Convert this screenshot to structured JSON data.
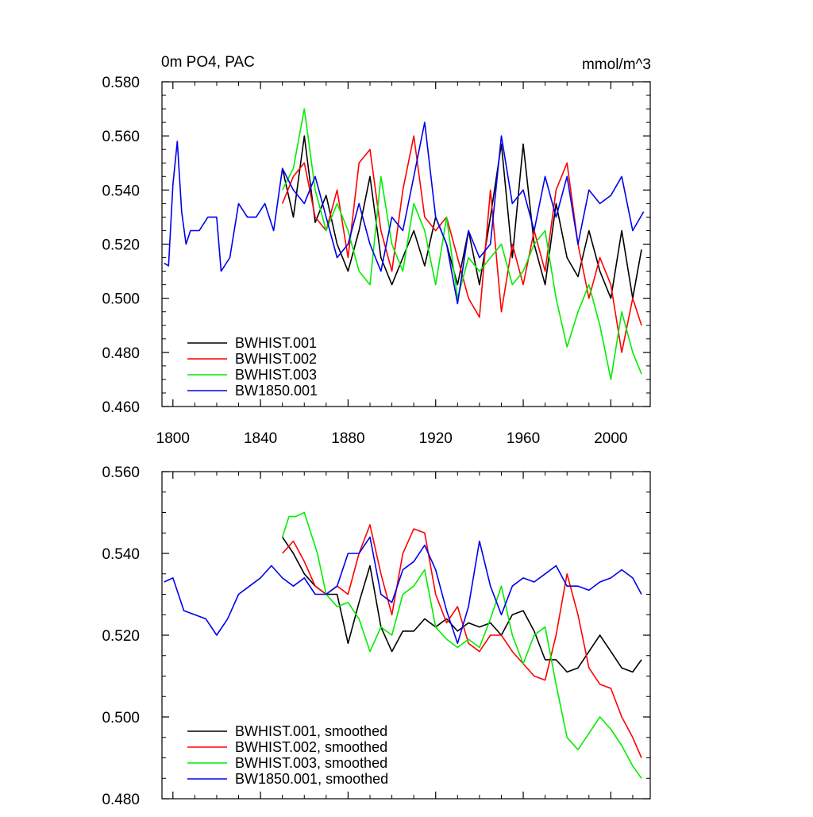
{
  "chart_data": [
    {
      "type": "line",
      "title_left": "0m PO4, PAC",
      "title_right": "mmol/m^3",
      "xlim": [
        1795,
        2018
      ],
      "ylim": [
        0.46,
        0.58
      ],
      "x_ticks": [
        1800,
        1840,
        1880,
        1920,
        1960,
        2000
      ],
      "x_tick_labels": [
        "1800",
        "1840",
        "1880",
        "1920",
        "1960",
        "2000"
      ],
      "y_ticks": [
        0.46,
        0.48,
        0.5,
        0.52,
        0.54,
        0.56,
        0.58
      ],
      "y_tick_labels": [
        "0.460",
        "0.480",
        "0.500",
        "0.520",
        "0.540",
        "0.560",
        "0.580"
      ],
      "legend_position": "bottom-left",
      "series": [
        {
          "name": "BWHIST.001",
          "color": "#000000",
          "x": [
            1850,
            1855,
            1860,
            1865,
            1870,
            1875,
            1880,
            1885,
            1890,
            1895,
            1900,
            1905,
            1910,
            1915,
            1920,
            1925,
            1930,
            1935,
            1940,
            1945,
            1950,
            1955,
            1960,
            1965,
            1970,
            1975,
            1980,
            1985,
            1990,
            1995,
            2000,
            2005,
            2010,
            2014
          ],
          "y": [
            0.548,
            0.53,
            0.56,
            0.528,
            0.538,
            0.52,
            0.51,
            0.525,
            0.545,
            0.515,
            0.505,
            0.515,
            0.525,
            0.512,
            0.53,
            0.52,
            0.505,
            0.525,
            0.505,
            0.53,
            0.557,
            0.515,
            0.557,
            0.52,
            0.505,
            0.535,
            0.515,
            0.508,
            0.525,
            0.51,
            0.5,
            0.525,
            0.5,
            0.518
          ]
        },
        {
          "name": "BWHIST.002",
          "color": "#ff0000",
          "x": [
            1850,
            1855,
            1860,
            1865,
            1870,
            1875,
            1880,
            1885,
            1890,
            1895,
            1900,
            1905,
            1910,
            1915,
            1920,
            1925,
            1930,
            1935,
            1940,
            1945,
            1950,
            1955,
            1960,
            1965,
            1970,
            1975,
            1980,
            1985,
            1990,
            1995,
            2000,
            2005,
            2010,
            2014
          ],
          "y": [
            0.535,
            0.545,
            0.55,
            0.53,
            0.525,
            0.54,
            0.515,
            0.55,
            0.555,
            0.525,
            0.51,
            0.54,
            0.56,
            0.53,
            0.525,
            0.53,
            0.515,
            0.5,
            0.493,
            0.54,
            0.495,
            0.52,
            0.505,
            0.525,
            0.51,
            0.54,
            0.55,
            0.52,
            0.5,
            0.515,
            0.505,
            0.48,
            0.5,
            0.49
          ]
        },
        {
          "name": "BWHIST.003",
          "color": "#00ee00",
          "x": [
            1850,
            1855,
            1860,
            1865,
            1870,
            1875,
            1880,
            1885,
            1890,
            1895,
            1900,
            1905,
            1910,
            1915,
            1920,
            1925,
            1930,
            1935,
            1940,
            1945,
            1950,
            1955,
            1960,
            1965,
            1970,
            1975,
            1980,
            1985,
            1990,
            1995,
            2000,
            2005,
            2010,
            2014
          ],
          "y": [
            0.54,
            0.548,
            0.57,
            0.54,
            0.525,
            0.535,
            0.525,
            0.51,
            0.505,
            0.545,
            0.52,
            0.51,
            0.535,
            0.525,
            0.505,
            0.53,
            0.5,
            0.515,
            0.51,
            0.515,
            0.52,
            0.505,
            0.51,
            0.52,
            0.525,
            0.5,
            0.482,
            0.495,
            0.505,
            0.49,
            0.47,
            0.495,
            0.48,
            0.472
          ]
        },
        {
          "name": "BW1850.001",
          "color": "#0000ee",
          "x": [
            1796,
            1798,
            1800,
            1802,
            1804,
            1806,
            1808,
            1812,
            1816,
            1820,
            1822,
            1826,
            1830,
            1834,
            1838,
            1842,
            1846,
            1850,
            1855,
            1860,
            1865,
            1870,
            1875,
            1880,
            1885,
            1890,
            1895,
            1900,
            1905,
            1910,
            1915,
            1920,
            1925,
            1930,
            1935,
            1940,
            1945,
            1950,
            1955,
            1960,
            1965,
            1970,
            1975,
            1980,
            1985,
            1990,
            1995,
            2000,
            2005,
            2010,
            2015
          ],
          "y": [
            0.513,
            0.512,
            0.542,
            0.558,
            0.532,
            0.52,
            0.525,
            0.525,
            0.53,
            0.53,
            0.51,
            0.515,
            0.535,
            0.53,
            0.53,
            0.535,
            0.525,
            0.548,
            0.54,
            0.535,
            0.545,
            0.53,
            0.515,
            0.52,
            0.535,
            0.52,
            0.51,
            0.53,
            0.525,
            0.545,
            0.565,
            0.53,
            0.52,
            0.498,
            0.525,
            0.515,
            0.52,
            0.56,
            0.535,
            0.54,
            0.525,
            0.545,
            0.53,
            0.545,
            0.52,
            0.54,
            0.535,
            0.538,
            0.545,
            0.525,
            0.532
          ]
        }
      ]
    },
    {
      "type": "line",
      "xlim": [
        1795,
        2018
      ],
      "ylim": [
        0.48,
        0.56
      ],
      "x_ticks": [
        1800,
        1840,
        1880,
        1920,
        1960,
        2000
      ],
      "y_ticks": [
        0.48,
        0.5,
        0.52,
        0.54,
        0.56
      ],
      "y_tick_labels": [
        "0.480",
        "0.500",
        "0.520",
        "0.540",
        "0.560"
      ],
      "legend_position": "bottom-left",
      "series": [
        {
          "name": "BWHIST.001, smoothed",
          "color": "#000000",
          "x": [
            1850,
            1855,
            1860,
            1865,
            1870,
            1875,
            1880,
            1885,
            1890,
            1895,
            1900,
            1905,
            1910,
            1915,
            1920,
            1925,
            1930,
            1935,
            1940,
            1945,
            1950,
            1955,
            1960,
            1965,
            1970,
            1975,
            1980,
            1985,
            1990,
            1995,
            2000,
            2005,
            2010,
            2014
          ],
          "y": [
            0.544,
            0.54,
            0.535,
            0.532,
            0.53,
            0.53,
            0.518,
            0.528,
            0.537,
            0.522,
            0.516,
            0.521,
            0.521,
            0.524,
            0.522,
            0.524,
            0.521,
            0.523,
            0.522,
            0.523,
            0.52,
            0.525,
            0.526,
            0.521,
            0.514,
            0.514,
            0.511,
            0.512,
            0.516,
            0.52,
            0.516,
            0.512,
            0.511,
            0.514
          ]
        },
        {
          "name": "BWHIST.002, smoothed",
          "color": "#ff0000",
          "x": [
            1850,
            1855,
            1860,
            1865,
            1870,
            1875,
            1880,
            1885,
            1890,
            1895,
            1900,
            1905,
            1910,
            1915,
            1920,
            1925,
            1930,
            1935,
            1940,
            1945,
            1950,
            1955,
            1960,
            1965,
            1970,
            1975,
            1980,
            1985,
            1990,
            1995,
            2000,
            2005,
            2010,
            2014
          ],
          "y": [
            0.54,
            0.543,
            0.538,
            0.532,
            0.53,
            0.532,
            0.53,
            0.54,
            0.547,
            0.535,
            0.525,
            0.54,
            0.546,
            0.545,
            0.53,
            0.523,
            0.527,
            0.518,
            0.516,
            0.52,
            0.52,
            0.516,
            0.513,
            0.51,
            0.509,
            0.52,
            0.535,
            0.525,
            0.512,
            0.508,
            0.507,
            0.5,
            0.495,
            0.49
          ]
        },
        {
          "name": "BWHIST.003, smoothed",
          "color": "#00ee00",
          "x": [
            1850,
            1853,
            1856,
            1860,
            1863,
            1866,
            1870,
            1875,
            1880,
            1885,
            1890,
            1895,
            1900,
            1905,
            1910,
            1915,
            1920,
            1925,
            1930,
            1935,
            1940,
            1945,
            1950,
            1955,
            1960,
            1965,
            1970,
            1975,
            1980,
            1985,
            1990,
            1995,
            2000,
            2005,
            2010,
            2014
          ],
          "y": [
            0.544,
            0.549,
            0.549,
            0.55,
            0.545,
            0.54,
            0.53,
            0.527,
            0.528,
            0.524,
            0.516,
            0.522,
            0.52,
            0.53,
            0.532,
            0.536,
            0.522,
            0.519,
            0.517,
            0.519,
            0.517,
            0.524,
            0.532,
            0.52,
            0.513,
            0.52,
            0.522,
            0.508,
            0.495,
            0.492,
            0.496,
            0.5,
            0.497,
            0.493,
            0.488,
            0.485
          ]
        },
        {
          "name": "BW1850.001, smoothed",
          "color": "#0000ee",
          "x": [
            1796,
            1800,
            1805,
            1810,
            1815,
            1820,
            1825,
            1830,
            1835,
            1840,
            1845,
            1850,
            1855,
            1860,
            1865,
            1870,
            1875,
            1880,
            1885,
            1890,
            1895,
            1900,
            1905,
            1910,
            1915,
            1920,
            1925,
            1930,
            1935,
            1940,
            1945,
            1950,
            1955,
            1960,
            1965,
            1970,
            1975,
            1980,
            1985,
            1990,
            1995,
            2000,
            2005,
            2010,
            2014
          ],
          "y": [
            0.533,
            0.534,
            0.526,
            0.525,
            0.524,
            0.52,
            0.524,
            0.53,
            0.532,
            0.534,
            0.537,
            0.534,
            0.532,
            0.534,
            0.53,
            0.53,
            0.532,
            0.54,
            0.54,
            0.544,
            0.53,
            0.528,
            0.536,
            0.538,
            0.542,
            0.536,
            0.526,
            0.518,
            0.527,
            0.543,
            0.532,
            0.525,
            0.532,
            0.534,
            0.533,
            0.535,
            0.537,
            0.532,
            0.532,
            0.531,
            0.533,
            0.534,
            0.536,
            0.534,
            0.53
          ]
        }
      ]
    }
  ]
}
